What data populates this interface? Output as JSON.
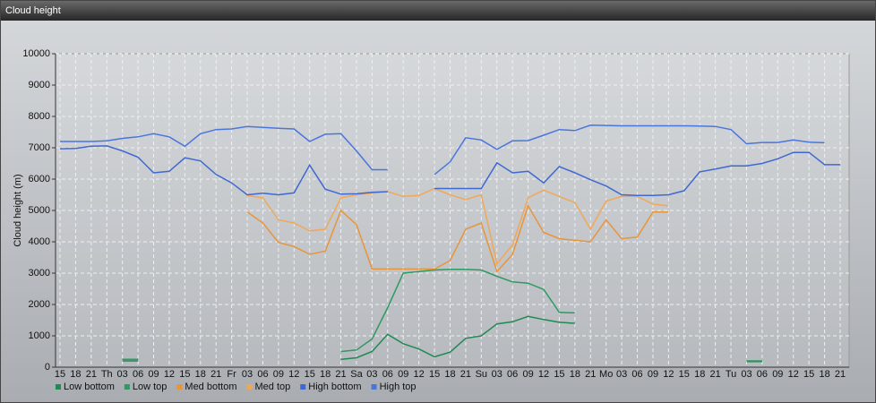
{
  "chart_data": {
    "type": "line",
    "title": "Cloud height",
    "y_label": "Cloud height (m)",
    "categories": [
      "15",
      "18",
      "21",
      "Th",
      "03",
      "06",
      "09",
      "12",
      "15",
      "18",
      "21",
      "Fr",
      "03",
      "06",
      "09",
      "12",
      "15",
      "18",
      "21",
      "Sa",
      "03",
      "06",
      "09",
      "12",
      "15",
      "18",
      "21",
      "Su",
      "03",
      "06",
      "09",
      "12",
      "15",
      "18",
      "21",
      "Mo",
      "03",
      "06",
      "09",
      "12",
      "15",
      "18",
      "21",
      "Tu",
      "03",
      "06",
      "09",
      "12",
      "15",
      "18",
      "21"
    ],
    "ylim": [
      0,
      10000
    ],
    "yticks": [
      0,
      1000,
      2000,
      3000,
      4000,
      5000,
      6000,
      7000,
      8000,
      9000,
      10000
    ],
    "grid": true,
    "legend": "bottom-left",
    "series": [
      {
        "name": "Low bottom",
        "color": "#1f8a52",
        "values": [
          null,
          null,
          null,
          null,
          200,
          200,
          null,
          null,
          null,
          null,
          null,
          null,
          null,
          null,
          null,
          null,
          null,
          null,
          250,
          300,
          500,
          1050,
          750,
          580,
          330,
          480,
          920,
          1000,
          1380,
          1450,
          1620,
          1520,
          1430,
          1400,
          null,
          null,
          null,
          null,
          null,
          null,
          null,
          null,
          null,
          null,
          180,
          180,
          null,
          null,
          null,
          null,
          null
        ]
      },
      {
        "name": "Low top",
        "color": "#2e9a62",
        "values": [
          null,
          null,
          null,
          null,
          250,
          250,
          null,
          null,
          null,
          null,
          null,
          null,
          null,
          null,
          null,
          null,
          null,
          null,
          500,
          550,
          900,
          1900,
          3000,
          3050,
          3100,
          3120,
          3120,
          3100,
          2900,
          2720,
          2680,
          2480,
          1750,
          1730,
          null,
          null,
          null,
          null,
          null,
          null,
          null,
          null,
          null,
          null,
          200,
          200,
          null,
          null,
          null,
          null,
          null
        ]
      },
      {
        "name": "Med bottom",
        "color": "#e8953a",
        "values": [
          null,
          null,
          null,
          null,
          null,
          null,
          null,
          null,
          null,
          null,
          null,
          null,
          4950,
          4600,
          3980,
          3850,
          3600,
          3700,
          5000,
          4550,
          3130,
          3130,
          3130,
          3130,
          3130,
          3400,
          4400,
          4600,
          3050,
          3600,
          5150,
          4300,
          4100,
          4050,
          4000,
          4700,
          4100,
          4150,
          4950,
          4950,
          null,
          null,
          null,
          null,
          null,
          null,
          null,
          null,
          null,
          null,
          null
        ]
      },
      {
        "name": "Med top",
        "color": "#f0a858",
        "values": [
          null,
          null,
          null,
          null,
          null,
          null,
          null,
          null,
          null,
          null,
          null,
          null,
          5480,
          5400,
          4700,
          4600,
          4350,
          4400,
          5400,
          5500,
          5550,
          5600,
          5450,
          5480,
          5700,
          5500,
          5350,
          5500,
          3300,
          3900,
          5400,
          5650,
          5450,
          5250,
          4400,
          5300,
          5450,
          5450,
          5200,
          5150,
          null,
          null,
          null,
          null,
          null,
          null,
          null,
          null,
          null,
          null,
          null
        ]
      },
      {
        "name": "High bottom",
        "color": "#3f68d2",
        "values": [
          6970,
          6980,
          7050,
          7060,
          6900,
          6700,
          6200,
          6250,
          6680,
          6580,
          6150,
          5880,
          5500,
          5550,
          5500,
          5560,
          6450,
          5680,
          5520,
          5530,
          5580,
          5600,
          null,
          null,
          5700,
          5700,
          5700,
          5700,
          6520,
          6200,
          6250,
          5880,
          6400,
          6200,
          5980,
          5780,
          5500,
          5480,
          5480,
          5500,
          5630,
          6230,
          6320,
          6420,
          6420,
          6500,
          6650,
          6850,
          6850,
          6460,
          6460
        ]
      },
      {
        "name": "High top",
        "color": "#4a76dc",
        "values": [
          7200,
          7200,
          7200,
          7220,
          7300,
          7350,
          7450,
          7350,
          7050,
          7450,
          7580,
          7600,
          7680,
          7650,
          7620,
          7600,
          7200,
          7430,
          7450,
          6900,
          6300,
          6300,
          null,
          null,
          6150,
          6550,
          7320,
          7250,
          6950,
          7220,
          7230,
          7400,
          7580,
          7550,
          7720,
          7710,
          7700,
          7700,
          7700,
          7700,
          7700,
          7690,
          7680,
          7580,
          7130,
          7170,
          7170,
          7250,
          7180,
          7160,
          null
        ]
      }
    ]
  }
}
